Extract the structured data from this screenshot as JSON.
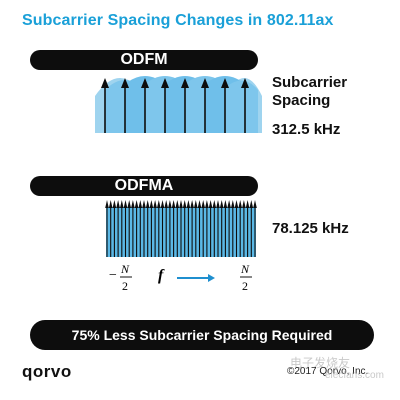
{
  "title": "Subcarrier Spacing Changes in 802.11ax",
  "ofdm": {
    "label": "ODFM",
    "subcarrier_label_line1": "Subcarrier",
    "subcarrier_label_line2": "Spacing",
    "spacing": "312.5 kHz"
  },
  "ofdma": {
    "label": "ODFMA",
    "spacing": "78.125 kHz"
  },
  "axis": {
    "left_sign": "−",
    "left_num": "N",
    "left_den": "2",
    "freq_symbol": "f",
    "right_num": "N",
    "right_den": "2"
  },
  "banner": "75% Less Subcarrier Spacing Required",
  "footer": {
    "logo": "qorvo",
    "copyright": "©2017 Qorvo, Inc."
  },
  "watermark": {
    "line1": "电子发烧友",
    "line2": "elecfans.com"
  },
  "colors": {
    "title": "#1aa0d8",
    "light_blue": "#9fd4ef",
    "mid_blue": "#5bb8e6",
    "dark_blue": "#1f8fcf",
    "black": "#0d0d0d"
  }
}
